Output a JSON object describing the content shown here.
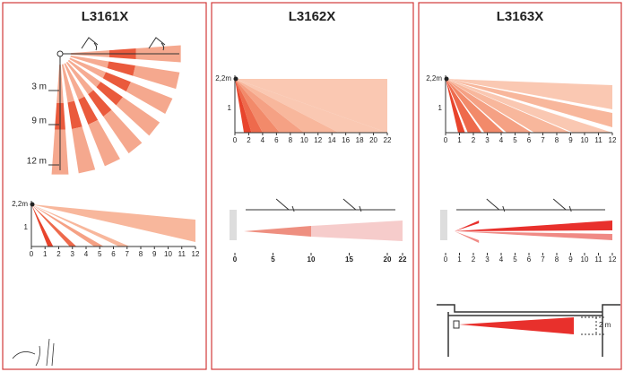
{
  "panels": [
    {
      "title": "L3161X",
      "top_view": {
        "labels": [
          "3 m",
          "9 m",
          "12 m"
        ]
      },
      "side_view": {
        "height_label": "2,2m",
        "y_label": "1",
        "x_ticks": [
          0,
          1,
          2,
          3,
          4,
          5,
          6,
          7,
          8,
          9,
          10,
          11,
          12
        ]
      }
    },
    {
      "title": "L3162X",
      "side_view": {
        "height_label": "2,2m",
        "y_label": "1",
        "x_ticks": [
          0,
          2,
          4,
          6,
          8,
          10,
          12,
          14,
          16,
          18,
          20,
          22
        ]
      },
      "curtain_view": {
        "x_ticks": [
          0,
          5,
          10,
          15,
          20,
          22
        ]
      }
    },
    {
      "title": "L3163X",
      "side_view": {
        "height_label": "2,2m",
        "y_label": "1",
        "x_ticks": [
          0,
          1,
          2,
          3,
          4,
          5,
          6,
          7,
          8,
          9,
          10,
          11,
          12
        ]
      },
      "curtain_view": {
        "x_ticks": [
          0,
          1,
          2,
          3,
          4,
          5,
          6,
          7,
          8,
          9,
          10,
          11,
          12
        ]
      },
      "corridor_view": {
        "height_label": "2 m"
      }
    }
  ]
}
